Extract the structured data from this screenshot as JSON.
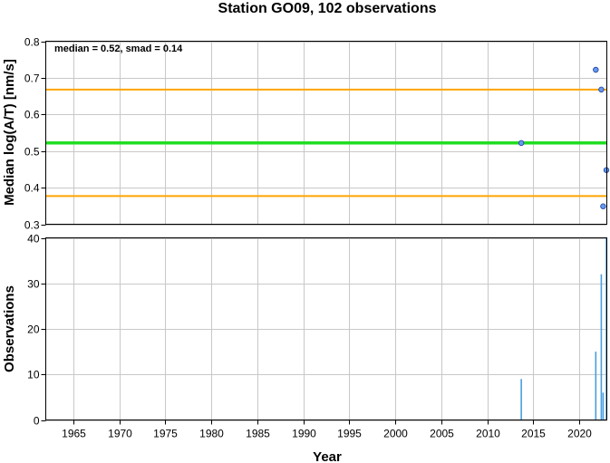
{
  "chart_data": [
    {
      "type": "scatter",
      "title": "Station GO09, 102 observations",
      "ylabel": "Median log(A/T) [nm/s]",
      "annotation": "median = 0.52, smad = 0.14",
      "xlim": [
        1962,
        2023
      ],
      "ylim": [
        0.3,
        0.8
      ],
      "yticks": [
        "0.3",
        "0.4",
        "0.5",
        "0.6",
        "0.7",
        "0.8"
      ],
      "hlines": [
        {
          "y": 0.522,
          "color": "#22dd22",
          "role": "median"
        },
        {
          "y": 0.668,
          "color": "#ffa500",
          "role": "upper"
        },
        {
          "y": 0.377,
          "color": "#ffa500",
          "role": "lower"
        }
      ],
      "points": [
        {
          "x": 2013.7,
          "y": 0.522
        },
        {
          "x": 2021.8,
          "y": 0.722
        },
        {
          "x": 2022.4,
          "y": 0.668
        },
        {
          "x": 2022.6,
          "y": 0.349
        },
        {
          "x": 2022.95,
          "y": 0.448
        }
      ],
      "point_color": "#6699ee",
      "grid": true
    },
    {
      "type": "bar",
      "ylabel": "Observations",
      "xlabel": "Year",
      "xlim": [
        1962,
        2023
      ],
      "ylim": [
        0,
        40
      ],
      "yticks": [
        "0",
        "10",
        "20",
        "30",
        "40"
      ],
      "xticks": [
        "1965",
        "1970",
        "1975",
        "1980",
        "1985",
        "1990",
        "1995",
        "2000",
        "2005",
        "2010",
        "2015",
        "2020"
      ],
      "bars": [
        {
          "x": 2013.7,
          "value": 9
        },
        {
          "x": 2021.8,
          "value": 15
        },
        {
          "x": 2022.4,
          "value": 32
        },
        {
          "x": 2022.6,
          "value": 6
        },
        {
          "x": 2022.95,
          "value": 40
        }
      ],
      "bar_color": "#4a9ee0",
      "grid": true
    }
  ]
}
